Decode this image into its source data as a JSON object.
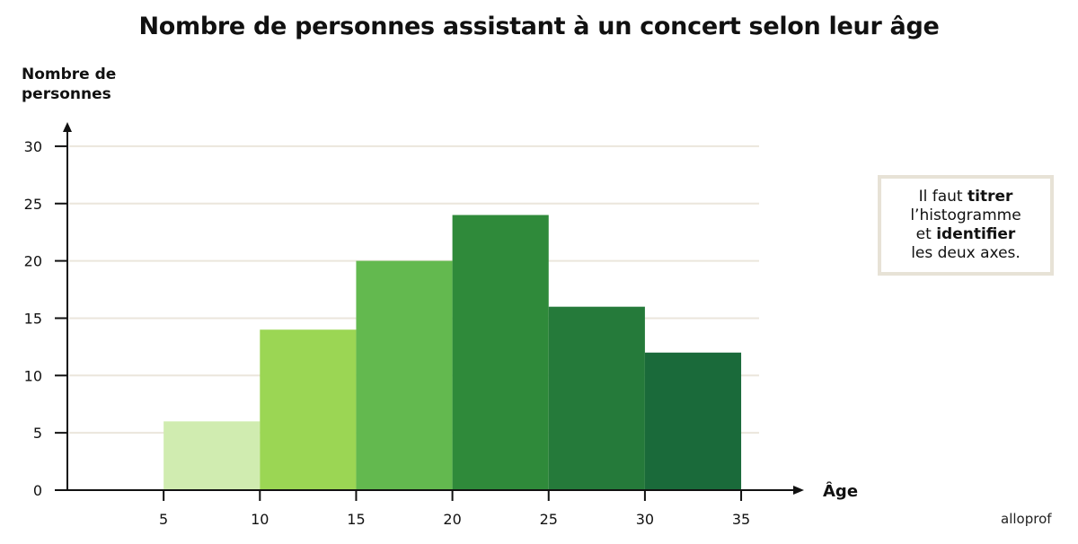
{
  "title": "Nombre de personnes assistant à un concert selon leur âge",
  "y_axis_label_line1": "Nombre de",
  "y_axis_label_line2": "personnes",
  "x_axis_label": "Âge",
  "note": {
    "part1": "Il faut ",
    "bold1": "titrer",
    "line2": "l’histogramme",
    "part3": "et ",
    "bold3": "identifier",
    "line4": "les deux axes."
  },
  "brand": "alloprof",
  "colors": {
    "grid": "#ebe6dc",
    "axis": "#111111",
    "note_border": "#e7e2d6",
    "bars": [
      "#d0ecb0",
      "#9bd654",
      "#63b94f",
      "#2f8a3a",
      "#257a3a",
      "#1a6a3a"
    ]
  },
  "chart_data": {
    "type": "bar",
    "subtype": "histogram",
    "title": "Nombre de personnes assistant à un concert selon leur âge",
    "xlabel": "Âge",
    "ylabel": "Nombre de personnes",
    "bins": [
      [
        5,
        10
      ],
      [
        10,
        15
      ],
      [
        15,
        20
      ],
      [
        20,
        25
      ],
      [
        25,
        30
      ],
      [
        30,
        35
      ]
    ],
    "categories": [
      "5-10",
      "10-15",
      "15-20",
      "20-25",
      "25-30",
      "30-35"
    ],
    "values": [
      6,
      14,
      20,
      24,
      16,
      12
    ],
    "x_ticks": [
      5,
      10,
      15,
      20,
      25,
      30,
      35
    ],
    "y_ticks": [
      0,
      5,
      10,
      15,
      20,
      25,
      30
    ],
    "ylim": [
      0,
      30
    ],
    "xlim": [
      0,
      35
    ],
    "grid": true,
    "legend": null
  }
}
